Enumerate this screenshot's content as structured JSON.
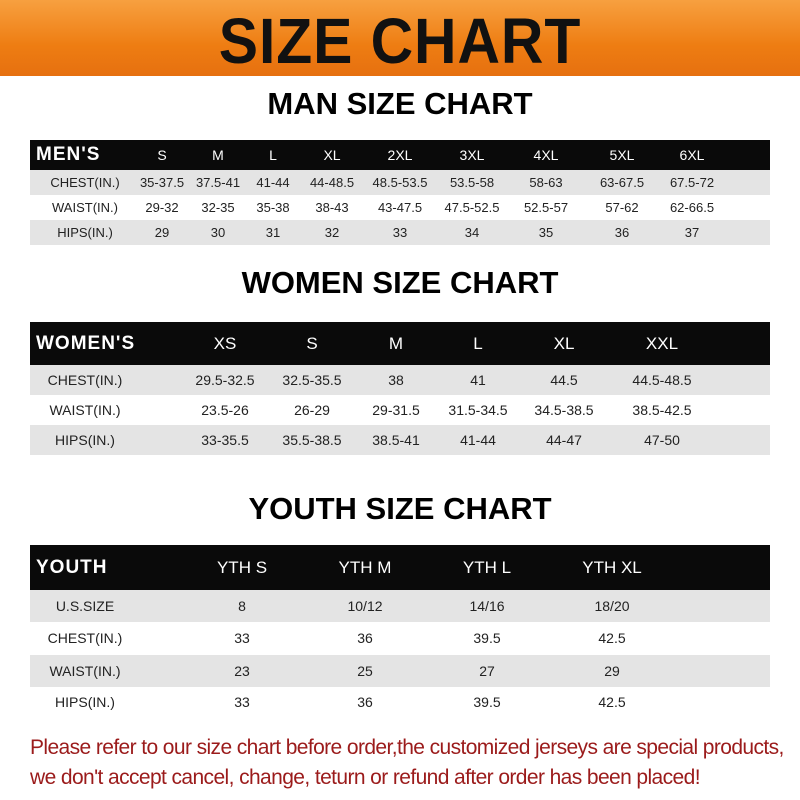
{
  "banner": {
    "title": "SIZE CHART"
  },
  "men": {
    "title": "MAN SIZE CHART",
    "header_label": "MEN'S",
    "sizes": [
      "S",
      "M",
      "L",
      "XL",
      "2XL",
      "3XL",
      "4XL",
      "5XL",
      "6XL"
    ],
    "rows": [
      {
        "label": "CHEST(IN.)",
        "values": [
          "35-37.5",
          "37.5-41",
          "41-44",
          "44-48.5",
          "48.5-53.5",
          "53.5-58",
          "58-63",
          "63-67.5",
          "67.5-72"
        ]
      },
      {
        "label": "WAIST(IN.)",
        "values": [
          "29-32",
          "32-35",
          "35-38",
          "38-43",
          "43-47.5",
          "47.5-52.5",
          "52.5-57",
          "57-62",
          "62-66.5"
        ]
      },
      {
        "label": "HIPS(IN.)",
        "values": [
          "29",
          "30",
          "31",
          "32",
          "33",
          "34",
          "35",
          "36",
          "37"
        ]
      }
    ]
  },
  "women": {
    "title": "WOMEN SIZE CHART",
    "header_label": "WOMEN'S",
    "sizes": [
      "XS",
      "S",
      "M",
      "L",
      "XL",
      "XXL"
    ],
    "rows": [
      {
        "label": "CHEST(IN.)",
        "values": [
          "29.5-32.5",
          "32.5-35.5",
          "38",
          "41",
          "44.5",
          "44.5-48.5"
        ]
      },
      {
        "label": "WAIST(IN.)",
        "values": [
          "23.5-26",
          "26-29",
          "29-31.5",
          "31.5-34.5",
          "34.5-38.5",
          "38.5-42.5"
        ]
      },
      {
        "label": "HIPS(IN.)",
        "values": [
          "33-35.5",
          "35.5-38.5",
          "38.5-41",
          "41-44",
          "44-47",
          "47-50"
        ]
      }
    ]
  },
  "youth": {
    "title": "YOUTH SIZE CHART",
    "header_label": "YOUTH",
    "sizes": [
      "YTH S",
      "YTH M",
      "YTH L",
      "YTH XL"
    ],
    "rows": [
      {
        "label": "U.S.SIZE",
        "values": [
          "8",
          "10/12",
          "14/16",
          "18/20"
        ]
      },
      {
        "label": "CHEST(IN.)",
        "values": [
          "33",
          "36",
          "39.5",
          "42.5"
        ]
      },
      {
        "label": "WAIST(IN.)",
        "values": [
          "23",
          "25",
          "27",
          "29"
        ]
      },
      {
        "label": "HIPS(IN.)",
        "values": [
          "33",
          "36",
          "39.5",
          "42.5"
        ]
      }
    ]
  },
  "notice": {
    "line1": "Please refer to our size chart before order,the customized jerseys are special products,",
    "line2": "we don't accept cancel, change, teturn or refund after order has been placed!"
  },
  "colors": {
    "banner": "#ee7d12",
    "header_row": "#0a0a0a",
    "stripe": "#e4e4e4",
    "notice": "#9b1b1b"
  }
}
